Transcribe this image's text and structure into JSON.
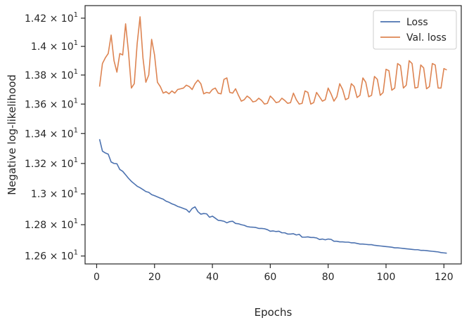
{
  "chart_data": {
    "type": "line",
    "xlabel": "Epochs",
    "ylabel": "Negative log-likelihood",
    "xlim": [
      -4,
      126
    ],
    "ylim": [
      12.55,
      14.29
    ],
    "y_scale": "log",
    "grid": false,
    "legend_position": "top-right",
    "x_ticks": [
      0,
      20,
      40,
      60,
      80,
      100,
      120
    ],
    "x_tick_labels": [
      "0",
      "20",
      "40",
      "60",
      "80",
      "100",
      "120"
    ],
    "y_ticks": [
      12.6,
      12.8,
      13.0,
      13.2,
      13.4,
      13.6,
      13.8,
      14.0,
      14.2
    ],
    "y_tick_labels": [
      {
        "base": "1.26",
        "times": "×",
        "power_base": "10",
        "exp": "1"
      },
      {
        "base": "1.28",
        "times": "×",
        "power_base": "10",
        "exp": "1"
      },
      {
        "base": "1.3",
        "times": "×",
        "power_base": "10",
        "exp": "1"
      },
      {
        "base": "1.32",
        "times": "×",
        "power_base": "10",
        "exp": "1"
      },
      {
        "base": "1.34",
        "times": "×",
        "power_base": "10",
        "exp": "1"
      },
      {
        "base": "1.36",
        "times": "×",
        "power_base": "10",
        "exp": "1"
      },
      {
        "base": "1.38",
        "times": "×",
        "power_base": "10",
        "exp": "1"
      },
      {
        "base": "1.4",
        "times": "×",
        "power_base": "10",
        "exp": "1"
      },
      {
        "base": "1.42",
        "times": "×",
        "power_base": "10",
        "exp": "1"
      }
    ],
    "series": [
      {
        "name": "Loss",
        "color": "#4c72b0",
        "x": [
          1,
          2,
          3,
          4,
          5,
          6,
          7,
          8,
          9,
          10,
          11,
          12,
          13,
          14,
          15,
          16,
          17,
          18,
          19,
          20,
          21,
          22,
          23,
          24,
          25,
          26,
          27,
          28,
          29,
          30,
          31,
          32,
          33,
          34,
          35,
          36,
          37,
          38,
          39,
          40,
          41,
          42,
          43,
          44,
          45,
          46,
          47,
          48,
          49,
          50,
          51,
          52,
          53,
          54,
          55,
          56,
          57,
          58,
          59,
          60,
          61,
          62,
          63,
          64,
          65,
          66,
          67,
          68,
          69,
          70,
          71,
          72,
          73,
          74,
          75,
          76,
          77,
          78,
          79,
          80,
          81,
          82,
          83,
          84,
          85,
          86,
          87,
          88,
          89,
          90,
          91,
          92,
          93,
          94,
          95,
          96,
          97,
          98,
          99,
          100,
          101,
          102,
          103,
          104,
          105,
          106,
          107,
          108,
          109,
          110,
          111,
          112,
          113,
          114,
          115,
          116,
          117,
          118,
          119,
          120,
          121
        ],
        "y": [
          13.362,
          13.282,
          13.27,
          13.262,
          13.21,
          13.2,
          13.198,
          13.16,
          13.148,
          13.125,
          13.102,
          13.082,
          13.066,
          13.05,
          13.04,
          13.028,
          13.015,
          13.01,
          12.995,
          12.988,
          12.98,
          12.972,
          12.965,
          12.952,
          12.945,
          12.935,
          12.928,
          12.918,
          12.912,
          12.905,
          12.898,
          12.88,
          12.905,
          12.915,
          12.884,
          12.868,
          12.872,
          12.87,
          12.848,
          12.855,
          12.842,
          12.828,
          12.826,
          12.822,
          12.812,
          12.82,
          12.822,
          12.808,
          12.806,
          12.8,
          12.796,
          12.788,
          12.785,
          12.784,
          12.782,
          12.776,
          12.776,
          12.774,
          12.768,
          12.758,
          12.76,
          12.756,
          12.758,
          12.748,
          12.748,
          12.74,
          12.74,
          12.742,
          12.734,
          12.738,
          12.72,
          12.72,
          12.722,
          12.718,
          12.718,
          12.715,
          12.705,
          12.708,
          12.703,
          12.708,
          12.706,
          12.694,
          12.694,
          12.69,
          12.69,
          12.688,
          12.688,
          12.684,
          12.684,
          12.68,
          12.676,
          12.676,
          12.674,
          12.672,
          12.672,
          12.668,
          12.666,
          12.664,
          12.662,
          12.66,
          12.658,
          12.656,
          12.652,
          12.652,
          12.65,
          12.648,
          12.646,
          12.644,
          12.642,
          12.64,
          12.64,
          12.636,
          12.636,
          12.634,
          12.632,
          12.63,
          12.628,
          12.626,
          12.622,
          12.62,
          12.618
        ]
      },
      {
        "name": "Val. loss",
        "color": "#dd8452",
        "x": [
          1,
          2,
          3,
          4,
          5,
          6,
          7,
          8,
          9,
          10,
          11,
          12,
          13,
          14,
          15,
          16,
          17,
          18,
          19,
          20,
          21,
          22,
          23,
          24,
          25,
          26,
          27,
          28,
          29,
          30,
          31,
          32,
          33,
          34,
          35,
          36,
          37,
          38,
          39,
          40,
          41,
          42,
          43,
          44,
          45,
          46,
          47,
          48,
          49,
          50,
          51,
          52,
          53,
          54,
          55,
          56,
          57,
          58,
          59,
          60,
          61,
          62,
          63,
          64,
          65,
          66,
          67,
          68,
          69,
          70,
          71,
          72,
          73,
          74,
          75,
          76,
          77,
          78,
          79,
          80,
          81,
          82,
          83,
          84,
          85,
          86,
          87,
          88,
          89,
          90,
          91,
          92,
          93,
          94,
          95,
          96,
          97,
          98,
          99,
          100,
          101,
          102,
          103,
          104,
          105,
          106,
          107,
          108,
          109,
          110,
          111,
          112,
          113,
          114,
          115,
          116,
          117,
          118,
          119,
          120,
          121
        ],
        "y": [
          13.72,
          13.88,
          13.92,
          13.95,
          14.08,
          13.9,
          13.82,
          13.95,
          13.94,
          14.16,
          13.96,
          13.71,
          13.74,
          14.02,
          14.21,
          13.92,
          13.75,
          13.8,
          14.05,
          13.94,
          13.75,
          13.72,
          13.675,
          13.685,
          13.67,
          13.69,
          13.675,
          13.7,
          13.705,
          13.71,
          13.73,
          13.72,
          13.7,
          13.74,
          13.765,
          13.74,
          13.67,
          13.68,
          13.675,
          13.7,
          13.71,
          13.675,
          13.67,
          13.77,
          13.78,
          13.68,
          13.675,
          13.705,
          13.66,
          13.62,
          13.63,
          13.655,
          13.64,
          13.615,
          13.62,
          13.64,
          13.625,
          13.6,
          13.605,
          13.655,
          13.635,
          13.61,
          13.615,
          13.64,
          13.625,
          13.605,
          13.61,
          13.675,
          13.63,
          13.6,
          13.605,
          13.69,
          13.68,
          13.6,
          13.61,
          13.68,
          13.65,
          13.62,
          13.63,
          13.71,
          13.67,
          13.62,
          13.65,
          13.74,
          13.7,
          13.63,
          13.64,
          13.74,
          13.72,
          13.645,
          13.66,
          13.78,
          13.75,
          13.65,
          13.66,
          13.79,
          13.77,
          13.66,
          13.68,
          13.84,
          13.83,
          13.695,
          13.71,
          13.88,
          13.865,
          13.71,
          13.73,
          13.9,
          13.88,
          13.71,
          13.715,
          13.87,
          13.85,
          13.705,
          13.72,
          13.88,
          13.87,
          13.71,
          13.71,
          13.845,
          13.835
        ]
      }
    ]
  }
}
